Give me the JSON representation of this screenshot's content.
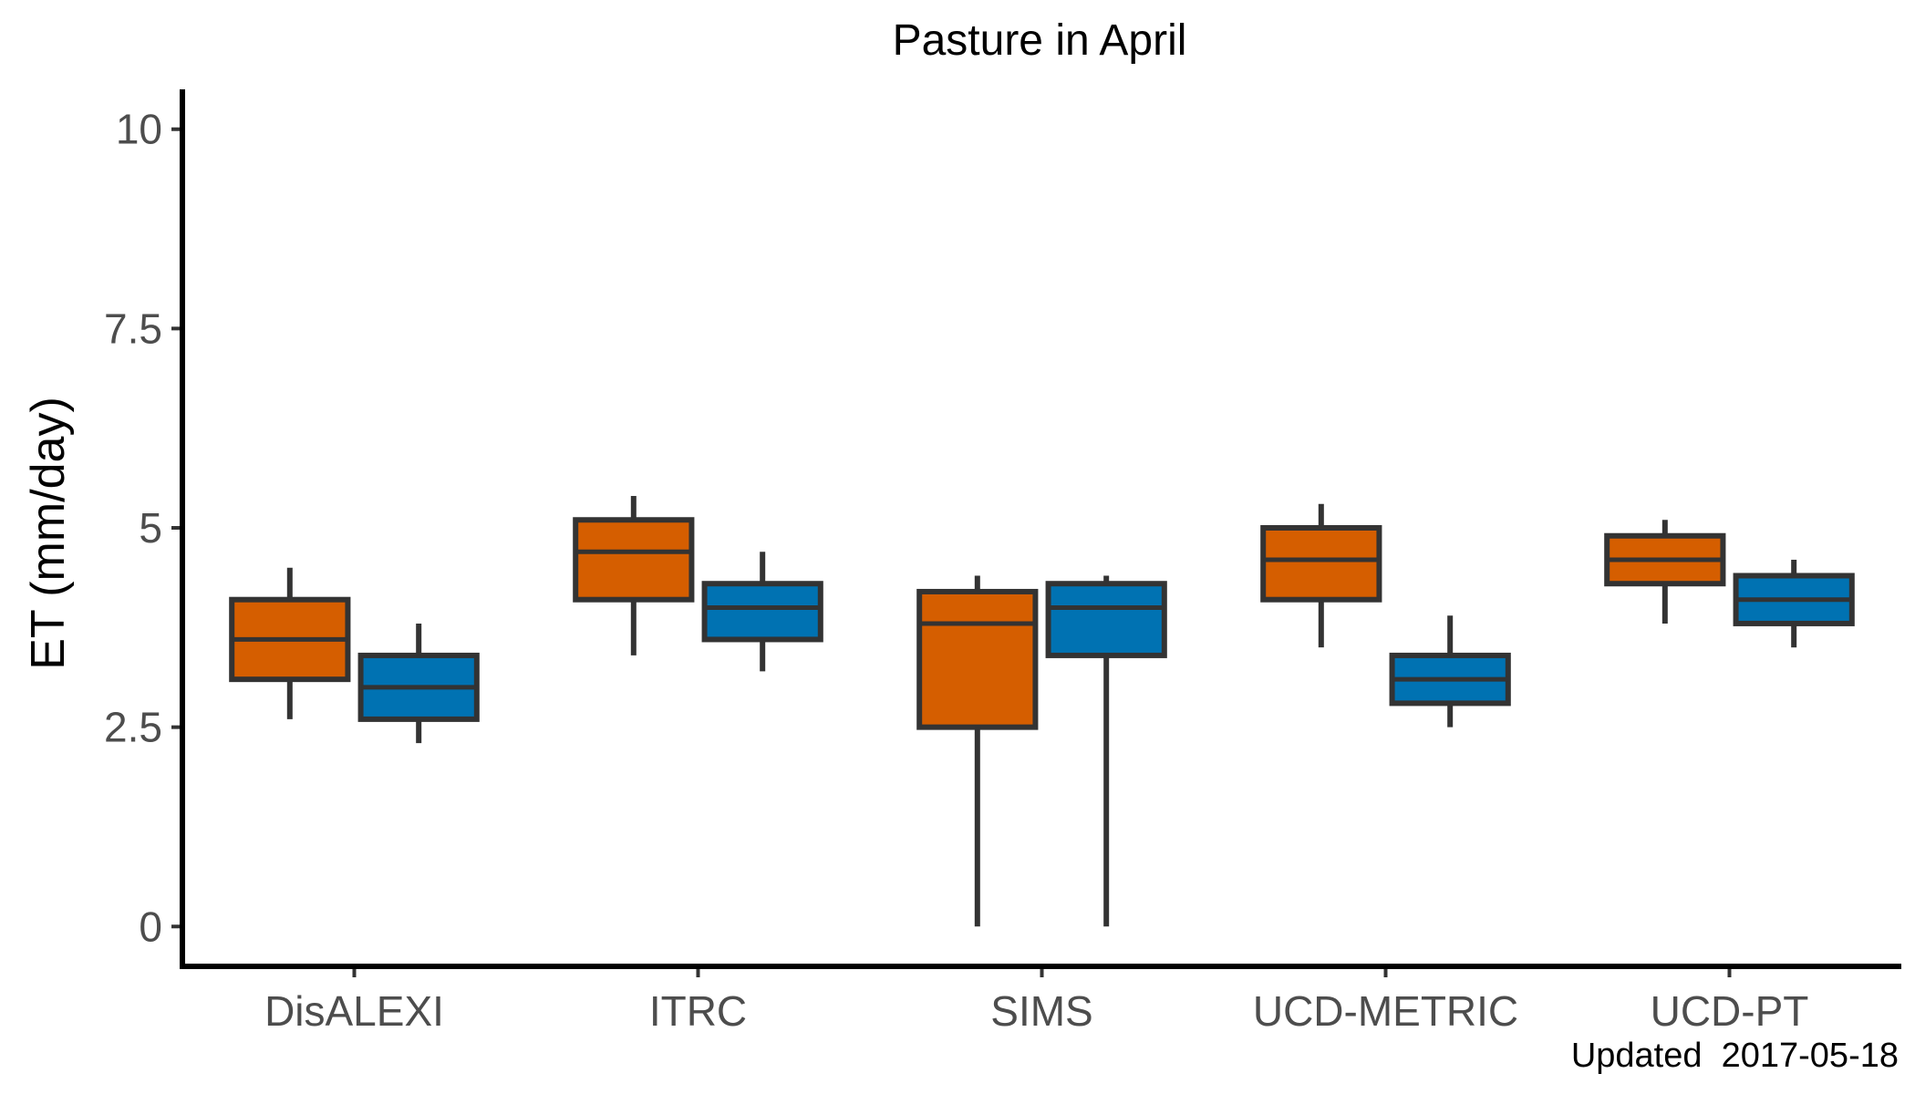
{
  "chart_data": {
    "type": "box",
    "title": "Pasture in April",
    "xlabel": "",
    "ylabel": "ET (mm/day)",
    "ylim": [
      -0.5,
      10.5
    ],
    "yticks": [
      {
        "value": 0,
        "label": "0"
      },
      {
        "value": 2.5,
        "label": "2.5"
      },
      {
        "value": 5,
        "label": "5"
      },
      {
        "value": 7.5,
        "label": "7.5"
      },
      {
        "value": 10,
        "label": "10"
      }
    ],
    "categories": [
      "DisALEXI",
      "ITRC",
      "SIMS",
      "UCD-METRIC",
      "UCD-PT"
    ],
    "grid": false,
    "legend": "none",
    "series": [
      {
        "color": "#D55E00",
        "boxes": [
          {
            "min": 2.6,
            "q1": 3.1,
            "median": 3.6,
            "q3": 4.1,
            "max": 4.5
          },
          {
            "min": 3.4,
            "q1": 4.1,
            "median": 4.7,
            "q3": 5.1,
            "max": 5.4
          },
          {
            "min": 0.0,
            "q1": 2.5,
            "median": 3.8,
            "q3": 4.2,
            "max": 4.4
          },
          {
            "min": 3.5,
            "q1": 4.1,
            "median": 4.6,
            "q3": 5.0,
            "max": 5.3
          },
          {
            "min": 3.8,
            "q1": 4.3,
            "median": 4.6,
            "q3": 4.9,
            "max": 5.1
          }
        ]
      },
      {
        "color": "#0072B2",
        "boxes": [
          {
            "min": 2.3,
            "q1": 2.6,
            "median": 3.0,
            "q3": 3.4,
            "max": 3.8
          },
          {
            "min": 3.2,
            "q1": 3.6,
            "median": 4.0,
            "q3": 4.3,
            "max": 4.7
          },
          {
            "min": 0.0,
            "q1": 3.4,
            "median": 4.0,
            "q3": 4.3,
            "max": 4.4
          },
          {
            "min": 2.5,
            "q1": 2.8,
            "median": 3.1,
            "q3": 3.4,
            "max": 3.9
          },
          {
            "min": 3.5,
            "q1": 3.8,
            "median": 4.1,
            "q3": 4.4,
            "max": 4.6
          }
        ]
      }
    ],
    "caption": "Updated  2017-05-18"
  }
}
